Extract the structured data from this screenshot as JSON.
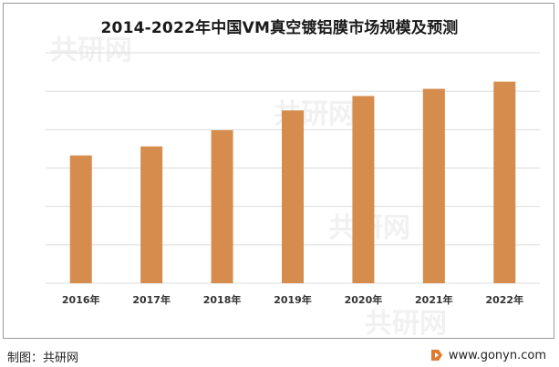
{
  "chart_data": {
    "type": "bar",
    "title": "2014-2022年中国VM真空镀铝膜市场规模及预测",
    "categories": [
      "2016年",
      "2017年",
      "2018年",
      "2019年",
      "2020年",
      "2021年",
      "2022年"
    ],
    "series": [
      {
        "values": [
          3.55,
          3.8,
          4.25,
          4.8,
          5.2,
          5.4,
          5.6
        ]
      }
    ],
    "ylim": [
      0,
      6.4
    ],
    "grid": true,
    "bar_color": "#d58c4d"
  },
  "footer": {
    "source": "制图：共研网",
    "website": "www.gonyn.com"
  },
  "watermark": {
    "text": "共研网"
  }
}
